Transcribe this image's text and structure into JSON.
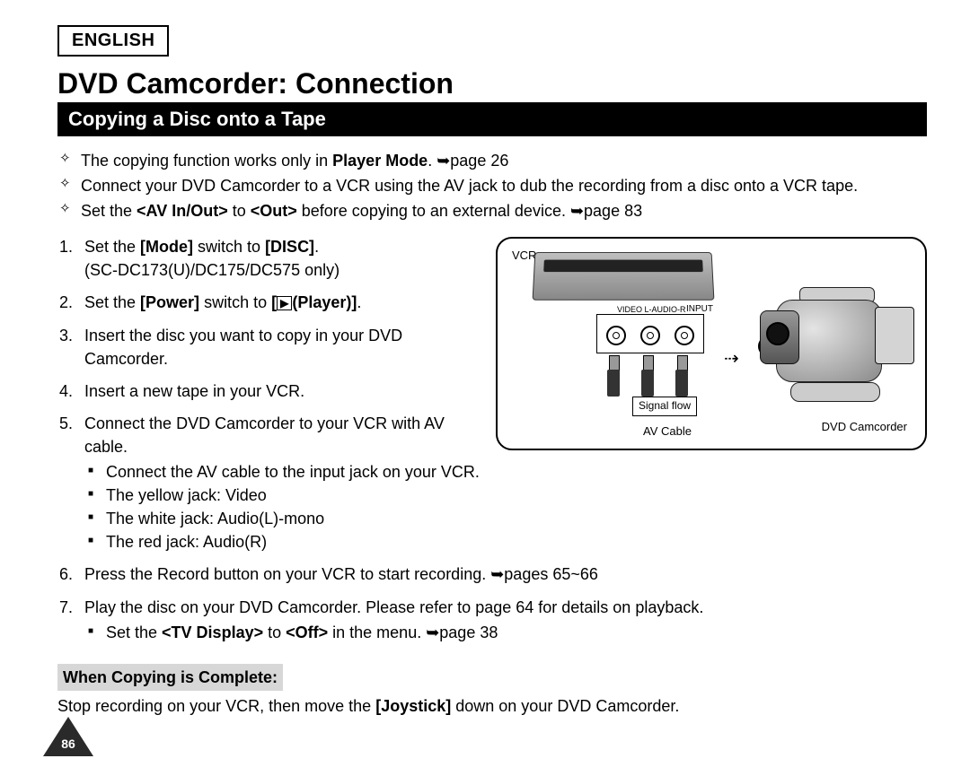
{
  "language_label": "ENGLISH",
  "title": "DVD Camcorder: Connection",
  "section_bar": "Copying a Disc onto a Tape",
  "notes": [
    "The copying function works only in <b>Player Mode</b>. ➥page 26",
    "Connect your DVD Camcorder to a VCR using the AV jack to dub the recording from a disc onto a VCR tape.",
    "Set the <b>&lt;AV In/Out&gt;</b> to <b>&lt;Out&gt;</b> before copying to an external device. ➥page 83"
  ],
  "steps": [
    {
      "text": "Set the <b>[Mode]</b> switch to <b>[DISC]</b>.",
      "sub": "(SC-DC173(U)/DC175/DC575 only)"
    },
    {
      "text": "Set the <b>[Power]</b> switch to <b>[<span class='player-icon'>▶</span>(Player)]</b>."
    },
    {
      "text": "Insert the disc you want to copy in your DVD Camcorder."
    },
    {
      "text": "Insert a new tape in your VCR."
    },
    {
      "text": "Connect the DVD Camcorder to your VCR with AV cable.",
      "bullets": [
        "Connect the AV cable to the input jack on your VCR.",
        "The yellow jack: Video",
        "The white jack: Audio(L)-mono",
        "The red jack: Audio(R)"
      ]
    },
    {
      "text": "Press the Record button on your VCR to start recording. ➥pages 65~66"
    },
    {
      "text": "Play the disc on your DVD Camcorder. Please refer to page 64 for details on playback.",
      "bullets": [
        "Set the <b>&lt;TV Display&gt;</b> to <b>&lt;Off&gt;</b> in the menu. ➥page 38"
      ]
    }
  ],
  "complete_heading": "When Copying is Complete:",
  "complete_text": "Stop recording on your VCR, then move the <b>[Joystick]</b> down on your DVD Camcorder.",
  "figure": {
    "vcr_label": "VCR",
    "input_label": "INPUT",
    "jack_labels": "VIDEO   L-AUDIO-R",
    "signal_flow": "Signal flow",
    "av_cable": "AV Cable",
    "camcorder_label": "DVD Camcorder",
    "av_text": "AV"
  },
  "page_number": "86"
}
